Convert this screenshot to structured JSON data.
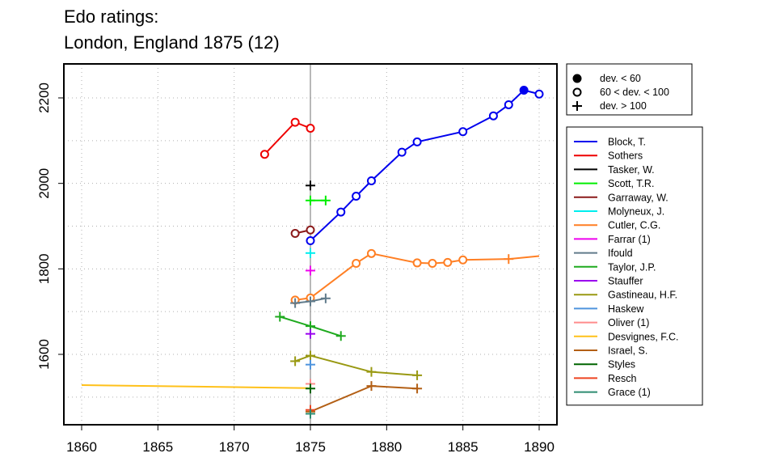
{
  "chart_data": {
    "type": "line",
    "title": "Edo ratings:",
    "subtitle": "London, England 1875 (12)",
    "xlabel": "",
    "ylabel": "",
    "xlim": [
      1859,
      1891
    ],
    "ylim": [
      1440,
      2285
    ],
    "x_ticks": [
      1860,
      1865,
      1870,
      1875,
      1880,
      1885,
      1890
    ],
    "y_ticks": [
      1600,
      1800,
      2000,
      2200
    ],
    "vertical_marker_x": 1875,
    "grid": "dotted",
    "marker_legend": [
      {
        "symbol": "filled-circle",
        "label": "dev. < 60"
      },
      {
        "symbol": "open-circle",
        "label": "60 < dev. < 100"
      },
      {
        "symbol": "plus",
        "label": "dev. > 100"
      }
    ],
    "series": [
      {
        "name": "Block, T.",
        "color": "#0000ee",
        "points": [
          [
            1875,
            1866,
            "o"
          ],
          [
            1877,
            1933,
            "o"
          ],
          [
            1878,
            1970,
            "o"
          ],
          [
            1879,
            2006,
            "o"
          ],
          [
            1881,
            2073,
            "o"
          ],
          [
            1882,
            2097,
            "o"
          ],
          [
            1885,
            2121,
            "o"
          ],
          [
            1887,
            2158,
            "o"
          ],
          [
            1888,
            2184,
            "o"
          ],
          [
            1889,
            2218,
            "f"
          ],
          [
            1890,
            2209,
            "o"
          ]
        ]
      },
      {
        "name": "Sothers",
        "color": "#ee0000",
        "points": [
          [
            1872,
            2068,
            "o"
          ],
          [
            1874,
            2143,
            "o"
          ],
          [
            1875,
            2129,
            "o"
          ]
        ]
      },
      {
        "name": "Tasker, W.",
        "color": "#000000",
        "points": [
          [
            1875,
            1995,
            "p"
          ]
        ]
      },
      {
        "name": "Scott, T.R.",
        "color": "#00ee00",
        "points": [
          [
            1875,
            1960,
            "p"
          ],
          [
            1876,
            1960,
            "p"
          ]
        ]
      },
      {
        "name": "Garraway, W.",
        "color": "#8b1a1a",
        "points": [
          [
            1874,
            1883,
            "o"
          ],
          [
            1875,
            1891,
            "o"
          ]
        ]
      },
      {
        "name": "Molyneux, J.",
        "color": "#00eeee",
        "points": [
          [
            1875,
            1837,
            "p"
          ]
        ]
      },
      {
        "name": "Cutler, C.G.",
        "color": "#ff7f24",
        "points": [
          [
            1874,
            1727,
            "o"
          ],
          [
            1875,
            1732,
            "o"
          ],
          [
            1878,
            1813,
            "o"
          ],
          [
            1879,
            1836,
            "o"
          ],
          [
            1882,
            1814,
            "o"
          ],
          [
            1883,
            1813,
            "o"
          ],
          [
            1884,
            1815,
            "o"
          ],
          [
            1885,
            1821,
            "o"
          ],
          [
            1888,
            1823,
            "p"
          ],
          [
            1890,
            1830,
            "n"
          ]
        ]
      },
      {
        "name": "Farrar (1)",
        "color": "#ee00ee",
        "points": [
          [
            1875,
            1796,
            "p"
          ]
        ]
      },
      {
        "name": "Ifould",
        "color": "#607b8b",
        "points": [
          [
            1874,
            1720,
            "p"
          ],
          [
            1875,
            1724,
            "p"
          ],
          [
            1876,
            1731,
            "p"
          ]
        ]
      },
      {
        "name": "Taylor, J.P.",
        "color": "#1faa1f",
        "points": [
          [
            1873,
            1688,
            "p"
          ],
          [
            1875,
            1666,
            "p"
          ],
          [
            1877,
            1643,
            "p"
          ]
        ]
      },
      {
        "name": "Stauffer",
        "color": "#9a00ee",
        "points": [
          [
            1875,
            1648,
            "p"
          ]
        ]
      },
      {
        "name": "Gastineau, H.F.",
        "color": "#999912",
        "points": [
          [
            1874,
            1584,
            "p"
          ],
          [
            1875,
            1597,
            "p"
          ],
          [
            1879,
            1559,
            "p"
          ],
          [
            1882,
            1551,
            "p"
          ]
        ]
      },
      {
        "name": "Haskew",
        "color": "#4f94dd",
        "points": [
          [
            1875,
            1576,
            "p"
          ]
        ]
      },
      {
        "name": "Oliver (1)",
        "color": "#ff8c8c",
        "points": [
          [
            1875,
            1531,
            "p"
          ]
        ]
      },
      {
        "name": "Desvignes, F.C.",
        "color": "#ffc11a",
        "points": [
          [
            1860,
            1528,
            "n"
          ],
          [
            1875,
            1521,
            "n"
          ]
        ]
      },
      {
        "name": "Israel, S.",
        "color": "#b35f15",
        "points": [
          [
            1875,
            1466,
            "p"
          ],
          [
            1879,
            1526,
            "p"
          ],
          [
            1882,
            1520,
            "p"
          ]
        ]
      },
      {
        "name": "Styles",
        "color": "#006400",
        "points": [
          [
            1875,
            1520,
            "p"
          ]
        ]
      },
      {
        "name": "Resch",
        "color": "#ee4422",
        "points": [
          [
            1875,
            1470,
            "p"
          ]
        ]
      },
      {
        "name": "Grace (1)",
        "color": "#2e8b70",
        "points": [
          [
            1875,
            1461,
            "p"
          ]
        ]
      }
    ]
  }
}
